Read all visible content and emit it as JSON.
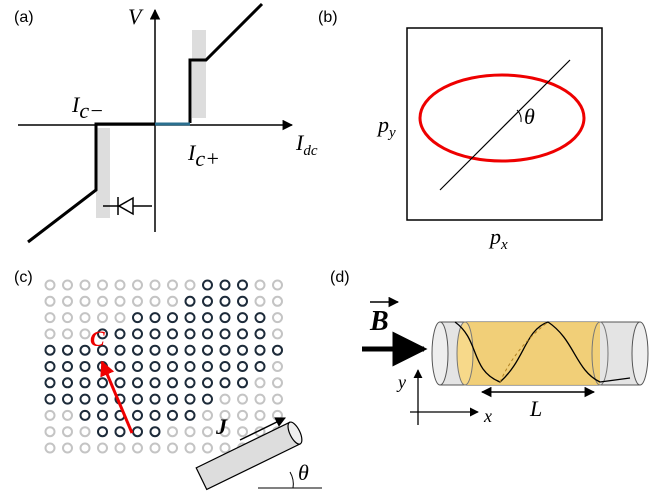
{
  "panels": {
    "a": {
      "label": "(a)",
      "y_axis": "V",
      "x_axis": {
        "symbol": "I",
        "subscript": "dc"
      },
      "critical_minus": {
        "symbol": "I",
        "subscript": "c−"
      },
      "critical_plus": {
        "symbol": "I",
        "subscript": "c+"
      }
    },
    "b": {
      "label": "(b)",
      "x_axis": {
        "symbol": "p",
        "subscript": "x"
      },
      "y_axis": {
        "symbol": "p",
        "subscript": "y"
      },
      "angle": "θ"
    },
    "c": {
      "label": "(c)",
      "vector_c": "C",
      "current": "J",
      "angle": "θ"
    },
    "d": {
      "label": "(d)",
      "field": "B",
      "x_axis": "x",
      "y_axis": "y",
      "length": "L"
    }
  }
}
